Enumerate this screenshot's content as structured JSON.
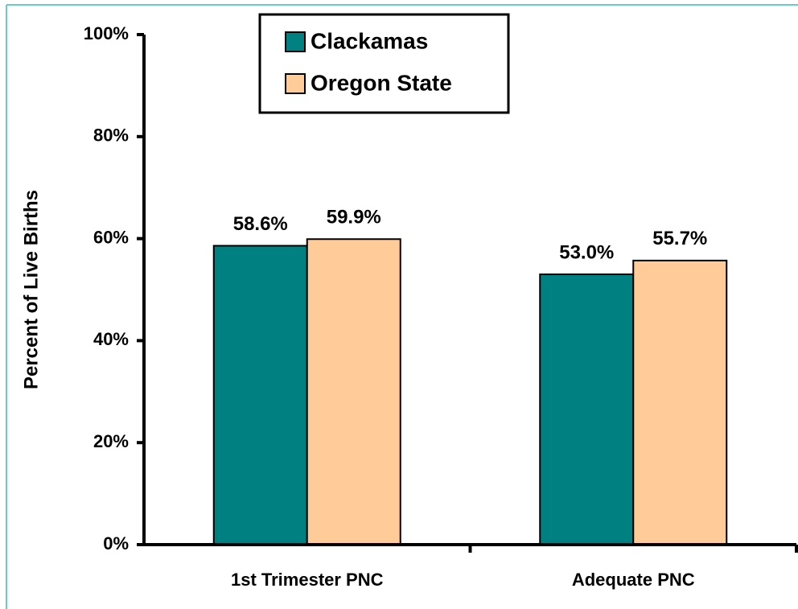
{
  "chart_data": {
    "type": "bar",
    "y_axis_label": "Percent of Live Births",
    "categories": [
      "1st Trimester PNC",
      "Adequate PNC"
    ],
    "series": [
      {
        "name": "Clackamas",
        "color": "#008080",
        "values": [
          58.6,
          53.0
        ],
        "value_labels": [
          "58.6%",
          "53.0%"
        ]
      },
      {
        "name": "Oregon State",
        "color": "#ffcc99",
        "values": [
          59.9,
          55.7
        ],
        "value_labels": [
          "59.9%",
          "55.7%"
        ]
      }
    ],
    "ylim": [
      0,
      100
    ],
    "yticks": [
      {
        "value": 0,
        "label": "0%"
      },
      {
        "value": 20,
        "label": "20%"
      },
      {
        "value": 40,
        "label": "40%"
      },
      {
        "value": 60,
        "label": "60%"
      },
      {
        "value": 80,
        "label": "80%"
      },
      {
        "value": 100,
        "label": "100%"
      }
    ],
    "legend": "top"
  }
}
